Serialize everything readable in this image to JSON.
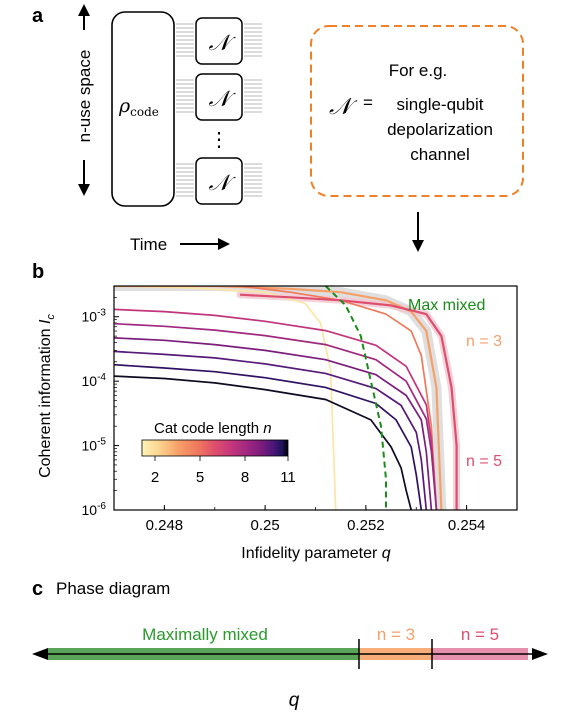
{
  "panel_a": {
    "label": "a",
    "nuse_label": "n-use space",
    "rho_label": "ρ",
    "rho_sub": "code",
    "channel_symbol": "𝒩",
    "dots": "⋮",
    "time_label": "Time",
    "callout": {
      "line1": "For e.g.",
      "equals": "=",
      "line2": "single-qubit",
      "line3": "depolarization",
      "line4": "channel"
    }
  },
  "panel_b": {
    "label": "b",
    "colorbar_title": "Cat code length ",
    "colorbar_title_var": "n",
    "colorbar_ticks": [
      "2",
      "5",
      "8",
      "11"
    ],
    "max_mixed_label": "Max mixed",
    "n3_label": "n = 3",
    "n5_label": "n = 5"
  },
  "panel_c": {
    "label": "c",
    "title": "Phase diagram",
    "mm_label": "Maximally mixed",
    "n3_label": "n = 3",
    "n5_label": "n = 5",
    "axis_label": "q"
  },
  "colors": {
    "max_mixed": "#1a8c1a",
    "n3": "#f5a06a",
    "n5": "#dd4f6e",
    "callout_border": "#f08028",
    "phase_green": "#5aa45a",
    "phase_orange": "#f6ad78",
    "phase_pink": "#e591ad"
  },
  "chart_data": {
    "type": "line",
    "xlabel": "Infidelity parameter ",
    "xlabel_var": "q",
    "ylabel": "Coherent information ",
    "ylabel_var": "I",
    "ylabel_sub": "c",
    "xlim": [
      0.247,
      0.255
    ],
    "ylim": [
      1e-06,
      0.003
    ],
    "yscale": "log",
    "xticks": [
      0.248,
      0.25,
      0.252,
      0.254
    ],
    "xtick_labels": [
      "0.248",
      "0.25",
      "0.252",
      "0.254"
    ],
    "yticks": [
      1e-06,
      1e-05,
      0.0001,
      0.001
    ],
    "ytick_labels": [
      "10-6",
      "10-5",
      "10-4",
      "10-3"
    ],
    "legend": "colorbar bottom-left",
    "max_mixed_curve": {
      "x": [
        0.2512,
        0.2516,
        0.2519,
        0.2521,
        0.2523,
        0.2524,
        0.2524
      ],
      "y": [
        0.003,
        0.0015,
        0.0005,
        0.0001,
        2e-05,
        3e-06,
        1e-06
      ]
    },
    "series": [
      {
        "n": 2,
        "color": "#fbe6a6",
        "x": [
          0.247,
          0.2485,
          0.25,
          0.2508,
          0.2511,
          0.2513,
          0.2514
        ],
        "y": [
          0.003,
          0.0028,
          0.0024,
          0.0016,
          0.0008,
          0.00015,
          1e-06
        ]
      },
      {
        "n": 3,
        "color": "#f6a069",
        "x": [
          0.247,
          0.249,
          0.2505,
          0.2515,
          0.2524,
          0.2529,
          0.2532,
          0.2534,
          0.2535
        ],
        "y": [
          0.003,
          0.003,
          0.0027,
          0.0024,
          0.0018,
          0.0012,
          0.0006,
          8e-05,
          1e-06
        ]
      },
      {
        "n": 4,
        "color": "#f0795d",
        "x": [
          0.2495,
          0.2505,
          0.2515,
          0.2524,
          0.2529,
          0.2531,
          0.2533,
          0.2534
        ],
        "y": [
          0.003,
          0.0024,
          0.0018,
          0.0011,
          0.0006,
          0.00025,
          2e-05,
          1e-06
        ]
      },
      {
        "n": 5,
        "color": "#dd4f6e",
        "x": [
          0.2495,
          0.2505,
          0.2515,
          0.2525,
          0.2532,
          0.2535,
          0.2537,
          0.2538,
          0.2538
        ],
        "y": [
          0.0022,
          0.002,
          0.0018,
          0.0015,
          0.0011,
          0.0005,
          8e-05,
          1e-05,
          1e-06
        ]
      },
      {
        "n": 6,
        "color": "#c2357d",
        "x": [
          0.247,
          0.248,
          0.249,
          0.25,
          0.2512,
          0.2522,
          0.2528,
          0.2532,
          0.2533,
          0.2534
        ],
        "y": [
          0.0013,
          0.0012,
          0.00105,
          0.00085,
          0.00061,
          0.00036,
          0.00017,
          4.3e-05,
          1.2e-05,
          1e-06
        ]
      },
      {
        "n": 7,
        "color": "#a0287f",
        "x": [
          0.247,
          0.248,
          0.249,
          0.25,
          0.2512,
          0.2522,
          0.2528,
          0.2532,
          0.2533,
          0.2534
        ],
        "y": [
          0.00078,
          0.00071,
          0.00062,
          0.00051,
          0.00037,
          0.000215,
          0.0001,
          2.6e-05,
          8e-06,
          1e-06
        ]
      },
      {
        "n": 8,
        "color": "#7b1d7c",
        "x": [
          0.247,
          0.248,
          0.249,
          0.25,
          0.2512,
          0.2522,
          0.2528,
          0.2531,
          0.2532,
          0.2533
        ],
        "y": [
          0.00047,
          0.00043,
          0.00037,
          0.0003,
          0.000215,
          0.000126,
          6e-05,
          2.5e-05,
          8e-06,
          1e-06
        ]
      },
      {
        "n": 9,
        "color": "#561a78",
        "x": [
          0.247,
          0.248,
          0.249,
          0.25,
          0.2512,
          0.2522,
          0.2527,
          0.253,
          0.2531,
          0.2532
        ],
        "y": [
          0.00029,
          0.00026,
          0.00023,
          0.000185,
          0.000132,
          7.7e-05,
          4.2e-05,
          1.6e-05,
          6e-06,
          1e-06
        ]
      },
      {
        "n": 10,
        "color": "#2f1162",
        "x": [
          0.247,
          0.248,
          0.249,
          0.25,
          0.2512,
          0.2522,
          0.2526,
          0.2529,
          0.253,
          0.2531
        ],
        "y": [
          0.00018,
          0.00016,
          0.00014,
          0.000113,
          8e-05,
          4.5e-05,
          2.5e-05,
          9.5e-06,
          3.5e-06,
          1e-06
        ]
      },
      {
        "n": 11,
        "color": "#0e0a22",
        "x": [
          0.247,
          0.248,
          0.249,
          0.25,
          0.2512,
          0.2521,
          0.2525,
          0.2527,
          0.2528,
          0.2529
        ],
        "y": [
          0.00012,
          0.00011,
          9.4e-05,
          7.4e-05,
          5.2e-05,
          2.5e-05,
          9.5e-06,
          4.5e-06,
          2e-06,
          1e-06
        ]
      }
    ]
  }
}
